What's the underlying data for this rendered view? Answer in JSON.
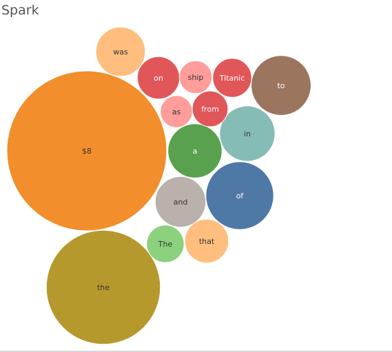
{
  "sheet": {
    "title": "Spark"
  },
  "chart_data": {
    "type": "bubble",
    "title": "Spark",
    "size_unit": "relative circle area",
    "bubbles": [
      {
        "label": "$8",
        "size": 100,
        "color": "#f28e2b",
        "text_color": "#333333"
      },
      {
        "label": "the",
        "size": 51,
        "color": "#b6992d",
        "text_color": "#333333"
      },
      {
        "label": "of",
        "size": 18,
        "color": "#4e79a7",
        "text_color": "#ffffff"
      },
      {
        "label": "to",
        "size": 14,
        "color": "#9c755f",
        "text_color": "#ffffff"
      },
      {
        "label": "in",
        "size": 12,
        "color": "#86bcb6",
        "text_color": "#333333"
      },
      {
        "label": "a",
        "size": 11.5,
        "color": "#59a14f",
        "text_color": "#ffffff"
      },
      {
        "label": "and",
        "size": 10,
        "color": "#bab0ac",
        "text_color": "#333333"
      },
      {
        "label": "was",
        "size": 9.5,
        "color": "#ffbe7d",
        "text_color": "#333333"
      },
      {
        "label": "that",
        "size": 7.5,
        "color": "#ffbe7d",
        "text_color": "#333333"
      },
      {
        "label": "on",
        "size": 7,
        "color": "#e15759",
        "text_color": "#ffffff"
      },
      {
        "label": "Titanic",
        "size": 5.9,
        "color": "#e15759",
        "text_color": "#ffffff"
      },
      {
        "label": "The",
        "size": 5.5,
        "color": "#8cd17d",
        "text_color": "#333333"
      },
      {
        "label": "from",
        "size": 5,
        "color": "#e15759",
        "text_color": "#ffffff"
      },
      {
        "label": "ship",
        "size": 4.2,
        "color": "#ff9d9a",
        "text_color": "#333333"
      },
      {
        "label": "as",
        "size": 4,
        "color": "#ff9d9a",
        "text_color": "#333333"
      }
    ]
  }
}
